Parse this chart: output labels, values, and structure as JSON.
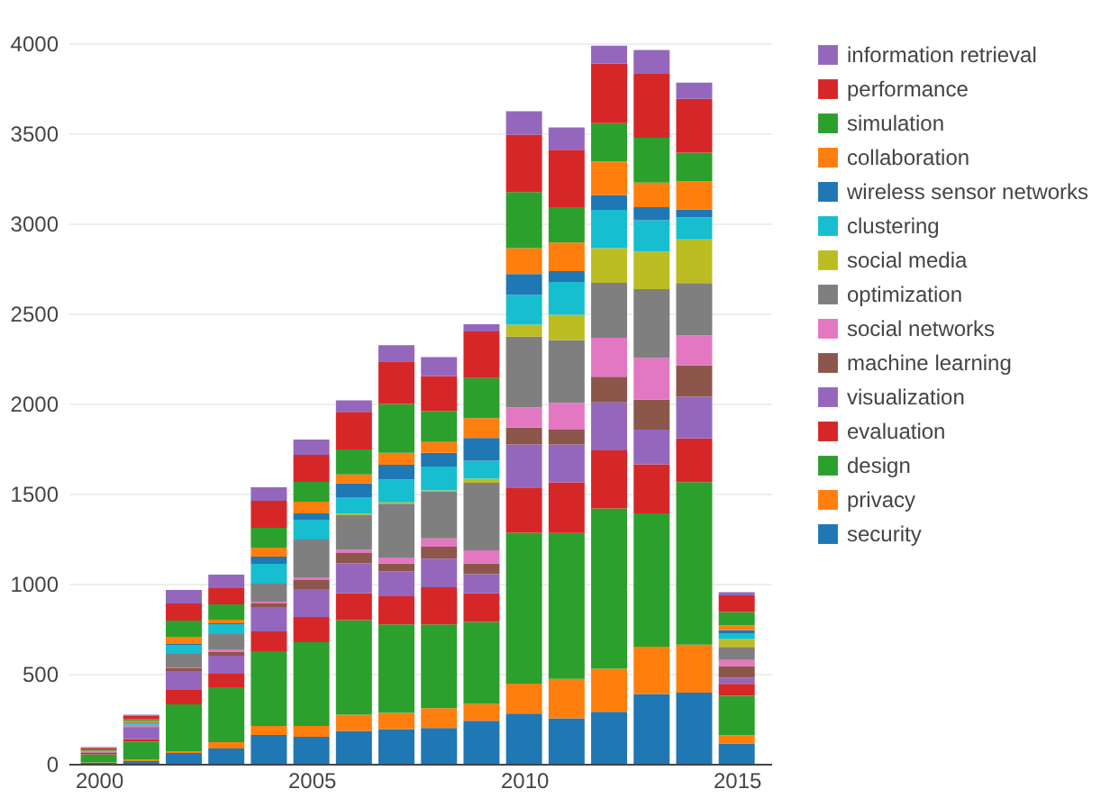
{
  "chart_data": {
    "type": "bar",
    "stacked": true,
    "x": [
      2000,
      2001,
      2002,
      2003,
      2004,
      2005,
      2006,
      2007,
      2008,
      2009,
      2010,
      2011,
      2012,
      2013,
      2014,
      2015
    ],
    "xlim": [
      1999.5,
      2015.6
    ],
    "xticks": [
      2000,
      2005,
      2010,
      2015
    ],
    "ylim": [
      0,
      4000
    ],
    "yticks": [
      0,
      500,
      1000,
      1500,
      2000,
      2500,
      3000,
      3500,
      4000
    ],
    "grid": "y",
    "legend": "top right",
    "series": [
      {
        "name": "security",
        "color": "#1f77b4",
        "values": [
          5,
          15,
          60,
          85,
          160,
          150,
          183,
          193,
          199,
          239,
          279,
          252,
          289,
          388,
          395,
          113
        ]
      },
      {
        "name": "privacy",
        "color": "#ff7f0e",
        "values": [
          3,
          8,
          10,
          35,
          50,
          60,
          90,
          90,
          110,
          93,
          166,
          219,
          239,
          262,
          266,
          46
        ]
      },
      {
        "name": "design",
        "color": "#2ca02c",
        "values": [
          45,
          100,
          260,
          305,
          415,
          465,
          525,
          491,
          465,
          455,
          837,
          810,
          890,
          740,
          903,
          219
        ]
      },
      {
        "name": "evaluation",
        "color": "#d62728",
        "values": [
          10,
          15,
          80,
          75,
          110,
          140,
          150,
          156,
          206,
          159,
          252,
          282,
          322,
          272,
          242,
          66
        ]
      },
      {
        "name": "visualization",
        "color": "#9467bd",
        "values": [
          5,
          65,
          105,
          100,
          135,
          155,
          165,
          139,
          159,
          106,
          239,
          209,
          266,
          193,
          232,
          33
        ]
      },
      {
        "name": "machine learning",
        "color": "#8c564b",
        "values": [
          null,
          5,
          15,
          20,
          20,
          50,
          57,
          43,
          66,
          60,
          93,
          83,
          143,
          166,
          173,
          66
        ]
      },
      {
        "name": "social networks",
        "color": "#e377c2",
        "values": [
          null,
          3,
          5,
          15,
          10,
          15,
          17,
          33,
          46,
          73,
          113,
          149,
          216,
          232,
          166,
          33
        ]
      },
      {
        "name": "optimization",
        "color": "#7f7f7f",
        "values": [
          null,
          5,
          75,
          85,
          100,
          210,
          193,
          299,
          259,
          375,
          392,
          349,
          305,
          382,
          292,
          73
        ]
      },
      {
        "name": "social media",
        "color": "#bcbd22",
        "values": [
          null,
          null,
          null,
          null,
          null,
          null,
          7,
          7,
          7,
          23,
          66,
          139,
          193,
          209,
          242,
          43
        ]
      },
      {
        "name": "clustering",
        "color": "#17becf",
        "values": [
          null,
          8,
          50,
          55,
          110,
          110,
          93,
          126,
          133,
          100,
          166,
          183,
          212,
          173,
          123,
          33
        ]
      },
      {
        "name": "wireless sensor networks",
        "color": "#1f77b4",
        "values": [
          null,
          5,
          5,
          5,
          40,
          35,
          76,
          83,
          76,
          126,
          116,
          60,
          83,
          73,
          43,
          17
        ]
      },
      {
        "name": "collaboration",
        "color": "#ff7f0e",
        "values": [
          3,
          10,
          40,
          20,
          50,
          65,
          50,
          66,
          60,
          110,
          143,
          159,
          186,
          136,
          156,
          27
        ]
      },
      {
        "name": "simulation",
        "color": "#2ca02c",
        "values": [
          5,
          8,
          90,
          85,
          110,
          110,
          139,
          272,
          173,
          222,
          312,
          196,
          212,
          249,
          159,
          73
        ]
      },
      {
        "name": "performance",
        "color": "#d62728",
        "values": [
          12,
          20,
          95,
          90,
          150,
          150,
          209,
          236,
          193,
          259,
          319,
          319,
          330,
          355,
          299,
          93
        ]
      },
      {
        "name": "information retrieval",
        "color": "#9467bd",
        "values": [
          5,
          5,
          75,
          75,
          75,
          85,
          63,
          90,
          106,
          40,
          129,
          123,
          100,
          133,
          90,
          17
        ]
      }
    ]
  }
}
